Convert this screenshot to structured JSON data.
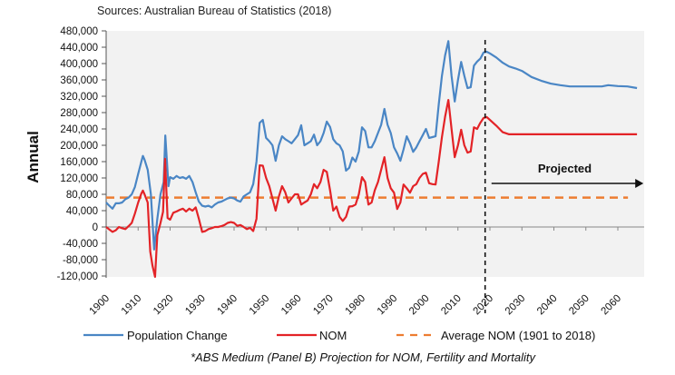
{
  "chart_data": {
    "type": "line",
    "title": "",
    "source_note": "Sources: Australian Bureau of Statistics (2018)",
    "ylabel": "Annual",
    "xlabel": "",
    "ylim": [
      -120000,
      480000
    ],
    "yticks": [
      480000,
      440000,
      400000,
      360000,
      320000,
      280000,
      240000,
      200000,
      160000,
      120000,
      80000,
      40000,
      0,
      -40000,
      -80000,
      -120000
    ],
    "ytick_labels": [
      "480,000",
      "440,000",
      "400,000",
      "360,000",
      "320,000",
      "280,000",
      "240,000",
      "200,000",
      "160,000",
      "120,000",
      "80,000",
      "40,000",
      "0",
      "-40,000",
      "-80,000",
      "-120,000"
    ],
    "xlim": [
      1900,
      2066
    ],
    "xticks": [
      1900,
      1910,
      1920,
      1930,
      1940,
      1950,
      1960,
      1970,
      1980,
      1990,
      2000,
      2010,
      2020,
      2030,
      2040,
      2050,
      2060
    ],
    "xtick_labels": [
      "1900",
      "1910",
      "1920",
      "1930",
      "1940",
      "1950",
      "1960",
      "1970",
      "1980",
      "1990",
      "2000",
      "2010",
      "2020",
      "2030",
      "2040",
      "2050",
      "2060"
    ],
    "grid": false,
    "background": "#f2f2f2",
    "legend_position": "bottom",
    "series": [
      {
        "name": "Population Change",
        "color": "#4a86c5",
        "style": "solid",
        "points": [
          [
            1900,
            60000
          ],
          [
            1901,
            52000
          ],
          [
            1902,
            45000
          ],
          [
            1903,
            58000
          ],
          [
            1904,
            58000
          ],
          [
            1905,
            60000
          ],
          [
            1906,
            68000
          ],
          [
            1907,
            72000
          ],
          [
            1908,
            80000
          ],
          [
            1909,
            98000
          ],
          [
            1910,
            130000
          ],
          [
            1911,
            160000
          ],
          [
            1911.5,
            174000
          ],
          [
            1912,
            165000
          ],
          [
            1913,
            140000
          ],
          [
            1914,
            80000
          ],
          [
            1915,
            -55000
          ],
          [
            1916,
            20000
          ],
          [
            1917,
            80000
          ],
          [
            1918,
            110000
          ],
          [
            1918.5,
            224000
          ],
          [
            1919,
            160000
          ],
          [
            1919.5,
            100000
          ],
          [
            1920,
            122000
          ],
          [
            1921,
            118000
          ],
          [
            1922,
            125000
          ],
          [
            1923,
            120000
          ],
          [
            1924,
            122000
          ],
          [
            1925,
            118000
          ],
          [
            1926,
            125000
          ],
          [
            1927,
            110000
          ],
          [
            1928,
            85000
          ],
          [
            1929,
            62000
          ],
          [
            1930,
            52000
          ],
          [
            1931,
            50000
          ],
          [
            1932,
            52000
          ],
          [
            1933,
            48000
          ],
          [
            1934,
            55000
          ],
          [
            1935,
            60000
          ],
          [
            1936,
            62000
          ],
          [
            1937,
            66000
          ],
          [
            1938,
            70000
          ],
          [
            1939,
            72000
          ],
          [
            1940,
            70000
          ],
          [
            1941,
            65000
          ],
          [
            1942,
            62000
          ],
          [
            1943,
            75000
          ],
          [
            1944,
            80000
          ],
          [
            1945,
            85000
          ],
          [
            1946,
            105000
          ],
          [
            1947,
            160000
          ],
          [
            1948,
            255000
          ],
          [
            1949,
            262000
          ],
          [
            1950,
            218000
          ],
          [
            1951,
            210000
          ],
          [
            1952,
            200000
          ],
          [
            1953,
            162000
          ],
          [
            1954,
            200000
          ],
          [
            1955,
            222000
          ],
          [
            1956,
            215000
          ],
          [
            1957,
            210000
          ],
          [
            1958,
            205000
          ],
          [
            1959,
            215000
          ],
          [
            1960,
            225000
          ],
          [
            1961,
            249000
          ],
          [
            1962,
            200000
          ],
          [
            1963,
            205000
          ],
          [
            1964,
            210000
          ],
          [
            1965,
            226000
          ],
          [
            1966,
            200000
          ],
          [
            1967,
            210000
          ],
          [
            1968,
            230000
          ],
          [
            1969,
            258000
          ],
          [
            1970,
            245000
          ],
          [
            1971,
            215000
          ],
          [
            1972,
            205000
          ],
          [
            1973,
            200000
          ],
          [
            1974,
            185000
          ],
          [
            1975,
            138000
          ],
          [
            1976,
            145000
          ],
          [
            1977,
            170000
          ],
          [
            1978,
            160000
          ],
          [
            1979,
            185000
          ],
          [
            1980,
            244000
          ],
          [
            1981,
            235000
          ],
          [
            1982,
            195000
          ],
          [
            1983,
            195000
          ],
          [
            1984,
            210000
          ],
          [
            1985,
            230000
          ],
          [
            1986,
            250000
          ],
          [
            1987,
            289000
          ],
          [
            1988,
            250000
          ],
          [
            1989,
            230000
          ],
          [
            1990,
            195000
          ],
          [
            1991,
            180000
          ],
          [
            1992,
            162000
          ],
          [
            1993,
            190000
          ],
          [
            1994,
            222000
          ],
          [
            1995,
            205000
          ],
          [
            1996,
            184000
          ],
          [
            1997,
            195000
          ],
          [
            1998,
            210000
          ],
          [
            1999,
            225000
          ],
          [
            2000,
            240000
          ],
          [
            2001,
            218000
          ],
          [
            2002,
            220000
          ],
          [
            2003,
            222000
          ],
          [
            2004,
            300000
          ],
          [
            2005,
            370000
          ],
          [
            2006,
            420000
          ],
          [
            2007,
            455000
          ],
          [
            2008,
            370000
          ],
          [
            2009,
            307000
          ],
          [
            2010,
            360000
          ],
          [
            2011,
            404000
          ],
          [
            2012,
            370000
          ],
          [
            2013,
            340000
          ],
          [
            2014,
            342000
          ],
          [
            2015,
            395000
          ],
          [
            2016,
            405000
          ],
          [
            2017,
            412000
          ],
          [
            2018,
            427000
          ],
          [
            2019,
            429000
          ],
          [
            2020,
            425000
          ],
          [
            2022,
            415000
          ],
          [
            2024,
            402000
          ],
          [
            2026,
            393000
          ],
          [
            2028,
            388000
          ],
          [
            2030,
            382000
          ],
          [
            2033,
            367000
          ],
          [
            2036,
            358000
          ],
          [
            2039,
            351000
          ],
          [
            2042,
            347000
          ],
          [
            2045,
            344000
          ],
          [
            2050,
            344000
          ],
          [
            2055,
            344000
          ],
          [
            2057,
            347000
          ],
          [
            2060,
            345000
          ],
          [
            2063,
            344000
          ],
          [
            2066,
            340000
          ]
        ]
      },
      {
        "name": "NOM",
        "color": "#e32327",
        "style": "solid",
        "points": [
          [
            1900,
            0
          ],
          [
            1901,
            -6000
          ],
          [
            1902,
            -12000
          ],
          [
            1903,
            -8000
          ],
          [
            1904,
            0
          ],
          [
            1905,
            -3000
          ],
          [
            1906,
            -5000
          ],
          [
            1907,
            2000
          ],
          [
            1908,
            10000
          ],
          [
            1909,
            33000
          ],
          [
            1910,
            60000
          ],
          [
            1911,
            82000
          ],
          [
            1911.5,
            89000
          ],
          [
            1912,
            80000
          ],
          [
            1913,
            60000
          ],
          [
            1913.8,
            -60000
          ],
          [
            1914.5,
            -95000
          ],
          [
            1915.3,
            -122000
          ],
          [
            1916,
            -20000
          ],
          [
            1917,
            10000
          ],
          [
            1917.8,
            37000
          ],
          [
            1918.4,
            167000
          ],
          [
            1919.2,
            22000
          ],
          [
            1920,
            18000
          ],
          [
            1921,
            35000
          ],
          [
            1922,
            38000
          ],
          [
            1923,
            42000
          ],
          [
            1924,
            45000
          ],
          [
            1925,
            38000
          ],
          [
            1926,
            45000
          ],
          [
            1927,
            40000
          ],
          [
            1928,
            48000
          ],
          [
            1929,
            20000
          ],
          [
            1930,
            -12000
          ],
          [
            1931,
            -10000
          ],
          [
            1932,
            -5000
          ],
          [
            1933,
            -3000
          ],
          [
            1934,
            0
          ],
          [
            1935,
            0
          ],
          [
            1936,
            2000
          ],
          [
            1937,
            5000
          ],
          [
            1938,
            10000
          ],
          [
            1939,
            12000
          ],
          [
            1940,
            10000
          ],
          [
            1941,
            3000
          ],
          [
            1942,
            5000
          ],
          [
            1943,
            0
          ],
          [
            1944,
            -5000
          ],
          [
            1945,
            -2000
          ],
          [
            1946,
            -10000
          ],
          [
            1947,
            20000
          ],
          [
            1948,
            151000
          ],
          [
            1949,
            150000
          ],
          [
            1950,
            120000
          ],
          [
            1951,
            100000
          ],
          [
            1952,
            70000
          ],
          [
            1953,
            40000
          ],
          [
            1954,
            75000
          ],
          [
            1955,
            100000
          ],
          [
            1956,
            85000
          ],
          [
            1957,
            60000
          ],
          [
            1958,
            70000
          ],
          [
            1959,
            80000
          ],
          [
            1960,
            80000
          ],
          [
            1961,
            55000
          ],
          [
            1962,
            60000
          ],
          [
            1963,
            65000
          ],
          [
            1964,
            80000
          ],
          [
            1965,
            105000
          ],
          [
            1966,
            95000
          ],
          [
            1967,
            110000
          ],
          [
            1968,
            140000
          ],
          [
            1969,
            135000
          ],
          [
            1970,
            90000
          ],
          [
            1971,
            40000
          ],
          [
            1972,
            50000
          ],
          [
            1973,
            25000
          ],
          [
            1974,
            15000
          ],
          [
            1975,
            25000
          ],
          [
            1976,
            50000
          ],
          [
            1977,
            51000
          ],
          [
            1978,
            55000
          ],
          [
            1979,
            80000
          ],
          [
            1980,
            122000
          ],
          [
            1981,
            110000
          ],
          [
            1982,
            55000
          ],
          [
            1983,
            60000
          ],
          [
            1984,
            90000
          ],
          [
            1985,
            110000
          ],
          [
            1986,
            140000
          ],
          [
            1987,
            171000
          ],
          [
            1988,
            120000
          ],
          [
            1989,
            95000
          ],
          [
            1990,
            84000
          ],
          [
            1991,
            44000
          ],
          [
            1992,
            60000
          ],
          [
            1993,
            104000
          ],
          [
            1994,
            95000
          ],
          [
            1995,
            84000
          ],
          [
            1996,
            100000
          ],
          [
            1997,
            105000
          ],
          [
            1998,
            120000
          ],
          [
            1999,
            130000
          ],
          [
            2000,
            133000
          ],
          [
            2001,
            107000
          ],
          [
            2002,
            105000
          ],
          [
            2003,
            104000
          ],
          [
            2004,
            160000
          ],
          [
            2005,
            220000
          ],
          [
            2006,
            270000
          ],
          [
            2007,
            311000
          ],
          [
            2008,
            240000
          ],
          [
            2009,
            171000
          ],
          [
            2010,
            200000
          ],
          [
            2011,
            238000
          ],
          [
            2012,
            200000
          ],
          [
            2013,
            182000
          ],
          [
            2014,
            185000
          ],
          [
            2015,
            244000
          ],
          [
            2016,
            240000
          ],
          [
            2017,
            255000
          ],
          [
            2018,
            267000
          ],
          [
            2019,
            269000
          ],
          [
            2020,
            262000
          ],
          [
            2022,
            248000
          ],
          [
            2024,
            232000
          ],
          [
            2026,
            227000
          ],
          [
            2030,
            227000
          ],
          [
            2040,
            227000
          ],
          [
            2050,
            227000
          ],
          [
            2060,
            227000
          ],
          [
            2066,
            227000
          ]
        ]
      },
      {
        "name": "Average NOM (1901 to 2018)",
        "color": "#ed7d31",
        "style": "dashed",
        "points": [
          [
            1900,
            72000
          ],
          [
            2066,
            72000
          ]
        ]
      }
    ],
    "annotations": [
      {
        "type": "vertical-dashed-line",
        "x": 2018.5,
        "color": "#111111"
      },
      {
        "type": "arrow",
        "text": "Projected",
        "x_from": 2020.5,
        "x_to": 2068,
        "y": 80000
      }
    ],
    "footnote": "*ABS Medium  (Panel B) Projection for NOM, Fertility and Mortality"
  }
}
